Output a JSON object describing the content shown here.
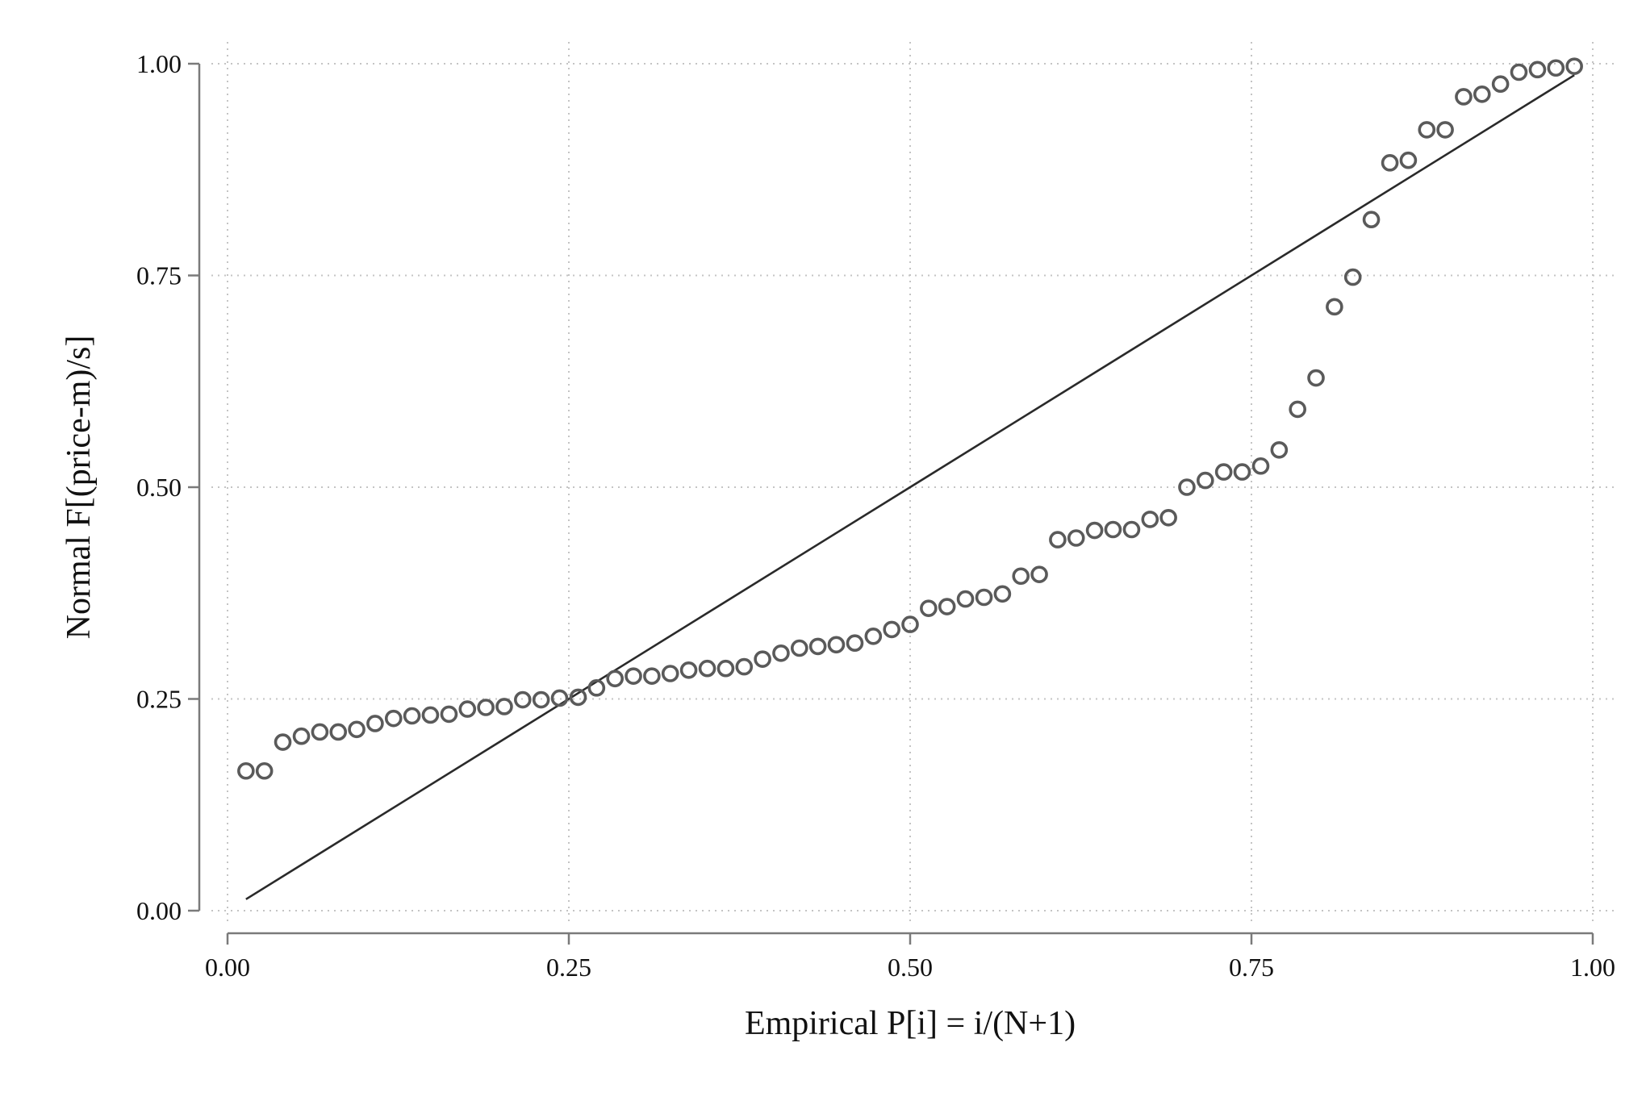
{
  "chart_data": {
    "type": "scatter",
    "title": "",
    "xlabel": "Empirical P[i] = i/(N+1)",
    "ylabel": "Normal F[(price-m)/s]",
    "xlim": [
      0,
      1
    ],
    "ylim": [
      0,
      1
    ],
    "xticks": [
      "0.00",
      "0.25",
      "0.50",
      "0.75",
      "1.00"
    ],
    "yticks": [
      "0.00",
      "0.25",
      "0.50",
      "0.75",
      "1.00"
    ],
    "grid": true,
    "reference_line": {
      "x": [
        0.0135,
        0.9865
      ],
      "y": [
        0.0135,
        0.9865
      ]
    },
    "series": [
      {
        "x": [
          0.0135,
          0.027,
          0.0405,
          0.0541,
          0.0676,
          0.0811,
          0.0946,
          0.1081,
          0.1216,
          0.1351,
          0.1486,
          0.1622,
          0.1757,
          0.1892,
          0.2027,
          0.2162,
          0.2297,
          0.2432,
          0.2568,
          0.2703,
          0.2838,
          0.2973,
          0.3108,
          0.3243,
          0.3378,
          0.3514,
          0.3649,
          0.3784,
          0.3919,
          0.4054,
          0.4189,
          0.4324,
          0.4459,
          0.4595,
          0.473,
          0.4865,
          0.5,
          0.5135,
          0.527,
          0.5405,
          0.5541,
          0.5676,
          0.5811,
          0.5946,
          0.6081,
          0.6216,
          0.6351,
          0.6486,
          0.6622,
          0.6757,
          0.6892,
          0.7027,
          0.7162,
          0.7297,
          0.7432,
          0.7568,
          0.7703,
          0.7838,
          0.7973,
          0.8108,
          0.8243,
          0.8378,
          0.8514,
          0.8649,
          0.8784,
          0.8919,
          0.9054,
          0.9189,
          0.9324,
          0.9459,
          0.9595,
          0.973,
          0.9865
        ],
        "y": [
          0.165,
          0.165,
          0.199,
          0.206,
          0.211,
          0.211,
          0.214,
          0.221,
          0.227,
          0.23,
          0.231,
          0.232,
          0.238,
          0.24,
          0.241,
          0.249,
          0.249,
          0.251,
          0.252,
          0.263,
          0.274,
          0.277,
          0.277,
          0.28,
          0.284,
          0.286,
          0.286,
          0.288,
          0.297,
          0.304,
          0.31,
          0.312,
          0.314,
          0.316,
          0.324,
          0.332,
          0.338,
          0.357,
          0.359,
          0.368,
          0.37,
          0.374,
          0.395,
          0.397,
          0.438,
          0.44,
          0.449,
          0.45,
          0.45,
          0.462,
          0.464,
          0.5,
          0.508,
          0.518,
          0.518,
          0.525,
          0.544,
          0.592,
          0.629,
          0.713,
          0.748,
          0.816,
          0.883,
          0.886,
          0.922,
          0.922,
          0.961,
          0.964,
          0.976,
          0.99,
          0.993,
          0.995,
          0.997
        ]
      }
    ]
  }
}
